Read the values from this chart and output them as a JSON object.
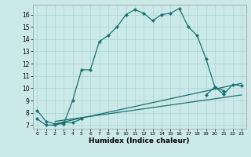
{
  "title": "",
  "xlabel": "Humidex (Indice chaleur)",
  "background_color": "#cce9e9",
  "grid_color": "#aad4d4",
  "line_color": "#1a7070",
  "xlim": [
    -0.5,
    23.5
  ],
  "ylim": [
    6.7,
    16.8
  ],
  "xticks": [
    0,
    1,
    2,
    3,
    4,
    5,
    6,
    7,
    8,
    9,
    10,
    11,
    12,
    13,
    14,
    15,
    16,
    17,
    18,
    19,
    20,
    21,
    22,
    23
  ],
  "yticks": [
    7,
    8,
    9,
    10,
    11,
    12,
    13,
    14,
    15,
    16
  ],
  "line1_x": [
    0,
    1,
    2,
    3,
    4,
    5,
    6,
    7,
    8,
    9,
    10,
    11,
    12,
    13,
    14,
    15,
    16,
    17,
    18,
    19,
    20,
    21
  ],
  "line1_y": [
    8.2,
    7.3,
    7.1,
    7.1,
    9.0,
    11.5,
    11.5,
    13.8,
    14.3,
    15.0,
    16.0,
    16.4,
    16.1,
    15.5,
    16.0,
    16.1,
    16.5,
    15.0,
    14.3,
    12.4,
    10.1,
    9.8
  ],
  "line2_x": [
    0,
    1,
    2,
    3,
    4,
    5
  ],
  "line2_y": [
    7.5,
    7.0,
    7.0,
    7.2,
    7.2,
    7.5
  ],
  "line3_x": [
    2,
    23
  ],
  "line3_y": [
    7.1,
    10.4
  ],
  "line4_x": [
    2,
    23
  ],
  "line4_y": [
    7.3,
    9.45
  ],
  "line5_x": [
    19,
    20,
    21,
    22,
    23
  ],
  "line5_y": [
    9.45,
    10.1,
    9.5,
    10.3,
    10.2
  ]
}
